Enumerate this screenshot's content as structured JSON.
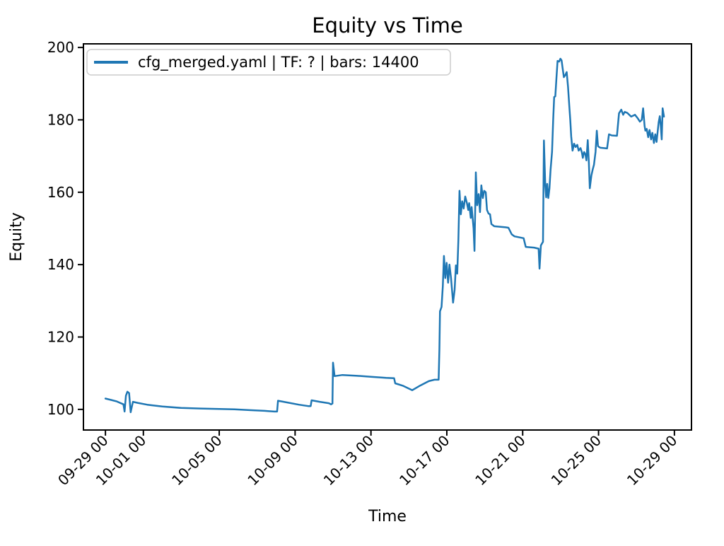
{
  "figure": {
    "title": "Equity vs Time",
    "xlabel": "Time",
    "ylabel": "Equity",
    "background_color": "#ffffff",
    "spine_color": "#000000"
  },
  "legend": {
    "label": "cfg_merged.yaml | TF: ? | bars: 14400",
    "line_color": "#1f77b4",
    "border_color": "#cccccc",
    "background_color": "#ffffff"
  },
  "chart_data": {
    "type": "line",
    "title": "Equity vs Time",
    "xlabel": "Time",
    "ylabel": "Equity",
    "grid": false,
    "legend_position": "upper left",
    "x_axis": {
      "unit": "days since 09-29 00:00",
      "lim": [
        -1.16,
        30.9
      ],
      "ticks": [
        0,
        2,
        6,
        10,
        14,
        18,
        22,
        26,
        30
      ],
      "tick_labels": [
        "09-29 00",
        "10-01 00",
        "10-05 00",
        "10-09 00",
        "10-13 00",
        "10-17 00",
        "10-21 00",
        "10-25 00",
        "10-29 00"
      ],
      "tick_rotation_deg": 45
    },
    "y_axis": {
      "lim": [
        94.3,
        201.0
      ],
      "ticks": [
        100,
        120,
        140,
        160,
        180,
        200
      ],
      "tick_labels": [
        "100",
        "120",
        "140",
        "160",
        "180",
        "200"
      ]
    },
    "series": [
      {
        "name": "cfg_merged.yaml | TF: ? | bars: 14400",
        "color": "#1f77b4",
        "line_width": 2.5,
        "points": [
          [
            0.0,
            103.0
          ],
          [
            0.3,
            102.6
          ],
          [
            0.6,
            102.2
          ],
          [
            0.95,
            101.4
          ],
          [
            1.01,
            99.4
          ],
          [
            1.08,
            103.8
          ],
          [
            1.16,
            104.9
          ],
          [
            1.25,
            104.5
          ],
          [
            1.33,
            99.2
          ],
          [
            1.45,
            102.1
          ],
          [
            1.7,
            101.8
          ],
          [
            2.2,
            101.3
          ],
          [
            3.0,
            100.8
          ],
          [
            4.0,
            100.4
          ],
          [
            5.0,
            100.25
          ],
          [
            6.0,
            100.1
          ],
          [
            6.8,
            100.0
          ],
          [
            7.6,
            99.8
          ],
          [
            8.4,
            99.6
          ],
          [
            8.9,
            99.4
          ],
          [
            9.05,
            99.4
          ],
          [
            9.1,
            102.4
          ],
          [
            9.6,
            101.9
          ],
          [
            10.2,
            101.3
          ],
          [
            10.7,
            100.9
          ],
          [
            10.82,
            100.9
          ],
          [
            10.87,
            102.5
          ],
          [
            11.3,
            102.1
          ],
          [
            11.78,
            101.7
          ],
          [
            11.9,
            101.4
          ],
          [
            11.97,
            101.6
          ],
          [
            12.0,
            112.9
          ],
          [
            12.08,
            109.2
          ],
          [
            12.5,
            109.5
          ],
          [
            13.2,
            109.3
          ],
          [
            14.0,
            109.0
          ],
          [
            14.8,
            108.7
          ],
          [
            15.22,
            108.6
          ],
          [
            15.28,
            107.2
          ],
          [
            15.7,
            106.5
          ],
          [
            16.18,
            105.3
          ],
          [
            16.6,
            106.6
          ],
          [
            17.05,
            107.8
          ],
          [
            17.35,
            108.2
          ],
          [
            17.57,
            108.2
          ],
          [
            17.61,
            116.8
          ],
          [
            17.64,
            127.1
          ],
          [
            17.72,
            128.3
          ],
          [
            17.79,
            134.0
          ],
          [
            17.85,
            142.4
          ],
          [
            17.92,
            136.3
          ],
          [
            17.99,
            140.5
          ],
          [
            18.07,
            135.0
          ],
          [
            18.14,
            140.0
          ],
          [
            18.22,
            136.3
          ],
          [
            18.33,
            129.5
          ],
          [
            18.41,
            133.0
          ],
          [
            18.48,
            139.8
          ],
          [
            18.55,
            137.5
          ],
          [
            18.61,
            146.7
          ],
          [
            18.67,
            160.4
          ],
          [
            18.74,
            153.9
          ],
          [
            18.81,
            157.5
          ],
          [
            18.89,
            155.5
          ],
          [
            18.97,
            158.8
          ],
          [
            19.06,
            157.0
          ],
          [
            19.13,
            155.1
          ],
          [
            19.18,
            157.0
          ],
          [
            19.26,
            152.9
          ],
          [
            19.31,
            155.9
          ],
          [
            19.41,
            150.0
          ],
          [
            19.46,
            143.8
          ],
          [
            19.53,
            165.5
          ],
          [
            19.6,
            156.4
          ],
          [
            19.68,
            159.5
          ],
          [
            19.75,
            154.5
          ],
          [
            19.82,
            161.9
          ],
          [
            19.9,
            158.4
          ],
          [
            19.97,
            160.4
          ],
          [
            20.05,
            160.0
          ],
          [
            20.12,
            155.1
          ],
          [
            20.2,
            154.1
          ],
          [
            20.28,
            153.9
          ],
          [
            20.35,
            151.2
          ],
          [
            20.5,
            150.6
          ],
          [
            21.1,
            150.3
          ],
          [
            21.25,
            150.2
          ],
          [
            21.42,
            148.4
          ],
          [
            21.57,
            147.8
          ],
          [
            22.05,
            147.3
          ],
          [
            22.16,
            144.9
          ],
          [
            22.6,
            144.7
          ],
          [
            22.84,
            144.4
          ],
          [
            22.89,
            138.9
          ],
          [
            22.96,
            145.3
          ],
          [
            23.07,
            146.3
          ],
          [
            23.12,
            174.3
          ],
          [
            23.19,
            162.0
          ],
          [
            23.24,
            158.6
          ],
          [
            23.29,
            162.3
          ],
          [
            23.35,
            158.4
          ],
          [
            23.41,
            161.0
          ],
          [
            23.47,
            166.2
          ],
          [
            23.55,
            171.2
          ],
          [
            23.61,
            180.0
          ],
          [
            23.66,
            186.3
          ],
          [
            23.72,
            186.5
          ],
          [
            23.78,
            191.5
          ],
          [
            23.84,
            196.3
          ],
          [
            23.92,
            196.1
          ],
          [
            23.99,
            196.9
          ],
          [
            24.05,
            196.4
          ],
          [
            24.1,
            194.5
          ],
          [
            24.17,
            191.8
          ],
          [
            24.25,
            192.4
          ],
          [
            24.32,
            193.2
          ],
          [
            24.39,
            189.1
          ],
          [
            24.46,
            183.8
          ],
          [
            24.51,
            179.9
          ],
          [
            24.56,
            175.4
          ],
          [
            24.63,
            171.5
          ],
          [
            24.71,
            173.4
          ],
          [
            24.79,
            172.5
          ],
          [
            24.88,
            173.1
          ],
          [
            24.95,
            171.5
          ],
          [
            25.05,
            172.2
          ],
          [
            25.12,
            171.0
          ],
          [
            25.17,
            169.5
          ],
          [
            25.24,
            171.1
          ],
          [
            25.31,
            170.5
          ],
          [
            25.36,
            168.8
          ],
          [
            25.43,
            174.4
          ],
          [
            25.49,
            168.0
          ],
          [
            25.54,
            161.1
          ],
          [
            25.62,
            164.6
          ],
          [
            25.69,
            166.2
          ],
          [
            25.76,
            167.6
          ],
          [
            25.84,
            171.1
          ],
          [
            25.91,
            177.0
          ],
          [
            25.97,
            172.7
          ],
          [
            26.1,
            172.3
          ],
          [
            26.45,
            172.1
          ],
          [
            26.55,
            176.0
          ],
          [
            26.7,
            175.7
          ],
          [
            26.97,
            175.6
          ],
          [
            27.08,
            181.8
          ],
          [
            27.2,
            182.8
          ],
          [
            27.3,
            181.4
          ],
          [
            27.38,
            182.2
          ],
          [
            27.52,
            181.9
          ],
          [
            27.72,
            180.9
          ],
          [
            27.92,
            181.4
          ],
          [
            28.07,
            180.4
          ],
          [
            28.18,
            179.5
          ],
          [
            28.28,
            180.0
          ],
          [
            28.35,
            183.2
          ],
          [
            28.43,
            178.3
          ],
          [
            28.47,
            177.0
          ],
          [
            28.54,
            177.5
          ],
          [
            28.62,
            175.2
          ],
          [
            28.69,
            177.2
          ],
          [
            28.77,
            174.6
          ],
          [
            28.84,
            176.4
          ],
          [
            28.92,
            173.6
          ],
          [
            28.99,
            176.0
          ],
          [
            29.06,
            173.9
          ],
          [
            29.17,
            179.3
          ],
          [
            29.23,
            181.0
          ],
          [
            29.28,
            178.5
          ],
          [
            29.33,
            174.6
          ],
          [
            29.38,
            183.2
          ],
          [
            29.45,
            180.9
          ]
        ]
      }
    ]
  }
}
